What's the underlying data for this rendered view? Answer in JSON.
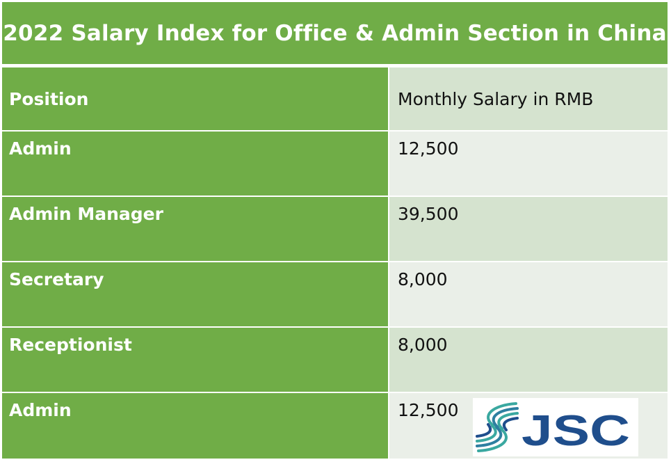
{
  "title": "2022 Salary Index for Office & Admin Section in China",
  "table": {
    "headers": [
      "Position",
      "Monthly Salary in RMB"
    ],
    "rows": [
      {
        "position": "Admin",
        "salary": "12,500"
      },
      {
        "position": "Admin Manager",
        "salary": "39,500"
      },
      {
        "position": "Secretary",
        "salary": "8,000"
      },
      {
        "position": "Receptionist",
        "salary": "8,000"
      },
      {
        "position": "Admin",
        "salary": "12,500"
      }
    ]
  },
  "logo": {
    "text": "JSC",
    "colors": {
      "text": "#1F4E8C",
      "teal": "#3AA8A0"
    }
  },
  "colors": {
    "green": "#70AD47",
    "cell_dark": "#D5E3CF",
    "cell_light": "#EAEFE8"
  }
}
